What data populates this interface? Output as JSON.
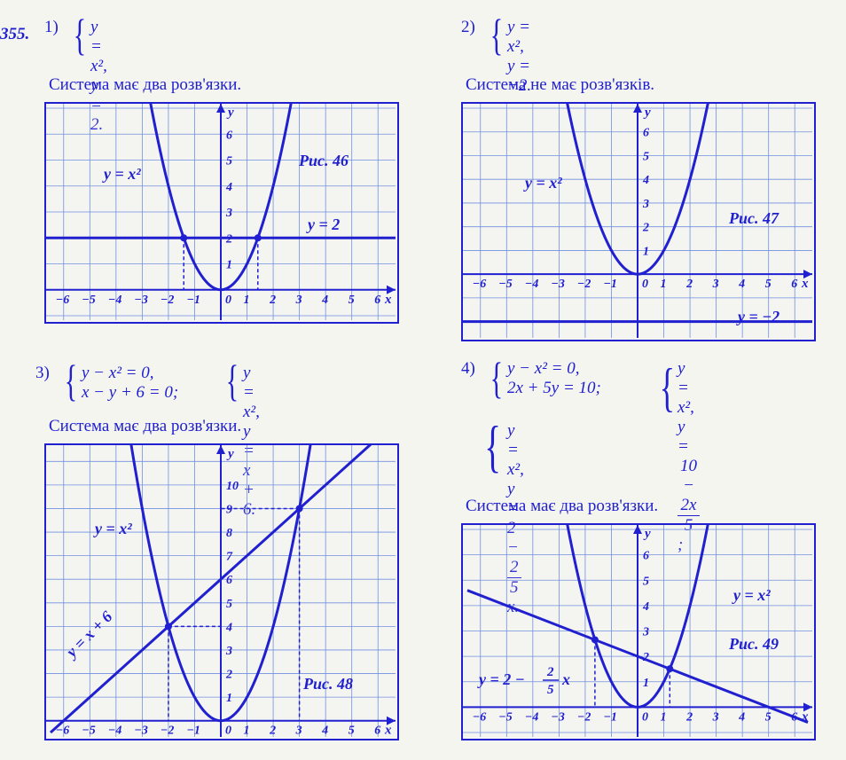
{
  "problem_number": "355.",
  "problems": {
    "p1": {
      "num": "1)",
      "eq1": "y = x²,",
      "eq2": "y = 2.",
      "caption": "Система має два розв'язки.",
      "chart": {
        "type": "line",
        "fig_label": "Рис. 46",
        "curve_label": "y = x²",
        "hline_label": "y = 2",
        "parabola_a": 1,
        "hline_y": 2,
        "xlim": [
          -6.5,
          6.5
        ],
        "ylim": [
          -1,
          7
        ],
        "xticks": [
          -6,
          -5,
          -4,
          -3,
          -2,
          -1,
          1,
          2,
          3,
          4,
          5,
          6
        ],
        "yticks": [
          1,
          2,
          3,
          4,
          5,
          6
        ],
        "intersections": [
          [
            -1.414,
            2
          ],
          [
            1.414,
            2
          ]
        ],
        "grid_color": "#7090e0",
        "axis_color": "#2020d0",
        "curve_color": "#2020d0",
        "bg": "#f5f5f0"
      }
    },
    "p2": {
      "num": "2)",
      "eq1": "y = x²,",
      "eq2": "y = −2.",
      "caption": "Система не має розв'язків.",
      "chart": {
        "type": "line",
        "fig_label": "Рис. 47",
        "curve_label": "y = x²",
        "hline_label": "y = −2",
        "parabola_a": 1,
        "hline_y": -2,
        "xlim": [
          -6.5,
          6.5
        ],
        "ylim": [
          -2.5,
          7
        ],
        "xticks": [
          -6,
          -5,
          -4,
          -3,
          -2,
          -1,
          1,
          2,
          3,
          4,
          5,
          6
        ],
        "yticks": [
          1,
          2,
          3,
          4,
          5,
          6
        ],
        "intersections": [],
        "grid_color": "#7090e0",
        "axis_color": "#2020d0",
        "curve_color": "#2020d0",
        "bg": "#f5f5f0"
      }
    },
    "p3": {
      "num": "3)",
      "eq1a": "y − x² = 0,",
      "eq2a": "x − y + 6 = 0;",
      "eq1b": "y = x²,",
      "eq2b": "y = x + 6.",
      "caption": "Система має два розв'язки.",
      "chart": {
        "type": "line",
        "fig_label": "Рис. 48",
        "curve_label": "y = x²",
        "line_label": "y = x + 6",
        "parabola_a": 1,
        "line_m": 1,
        "line_b": 6,
        "xlim": [
          -6.5,
          6.5
        ],
        "ylim": [
          -0.5,
          11.5
        ],
        "xticks": [
          -6,
          -5,
          -4,
          -3,
          -2,
          -1,
          1,
          2,
          3,
          4,
          5,
          6
        ],
        "yticks": [
          1,
          2,
          3,
          4,
          5,
          6,
          7,
          8,
          9,
          10
        ],
        "intersections": [
          [
            -2,
            4
          ],
          [
            3,
            9
          ]
        ],
        "grid_color": "#7090e0",
        "axis_color": "#2020d0",
        "curve_color": "#2020d0",
        "bg": "#f5f5f0"
      }
    },
    "p4": {
      "num": "4)",
      "eq1a": "y − x² = 0,",
      "eq2a": "2x + 5y = 10;",
      "eq1b": "y = x²,",
      "eq2b_html": "y = <span class='frac'><span class='n'>10 − 2x</span><span class='d'>5</span></span> ;",
      "eq1c": "y = x²,",
      "eq2c_html": "y = 2 − <span class='frac'><span class='n'>2</span><span class='d'>5</span></span> x.",
      "caption": "Система має два розв'язки.",
      "chart": {
        "type": "line",
        "fig_label": "Рис. 49",
        "curve_label": "y = x²",
        "line_label_html": "y = 2 − (2/5) x",
        "parabola_a": 1,
        "line_m": -0.4,
        "line_b": 2,
        "xlim": [
          -6.5,
          6.5
        ],
        "ylim": [
          -1,
          7
        ],
        "xticks": [
          -6,
          -5,
          -4,
          -3,
          -2,
          -1,
          1,
          2,
          3,
          4,
          5,
          6
        ],
        "yticks": [
          1,
          2,
          3,
          4,
          5,
          6
        ],
        "intersections": [
          [
            -1.629,
            2.652
          ],
          [
            1.229,
            1.508
          ]
        ],
        "grid_color": "#7090e0",
        "axis_color": "#2020d0",
        "curve_color": "#2020d0",
        "bg": "#f5f5f0"
      }
    }
  }
}
